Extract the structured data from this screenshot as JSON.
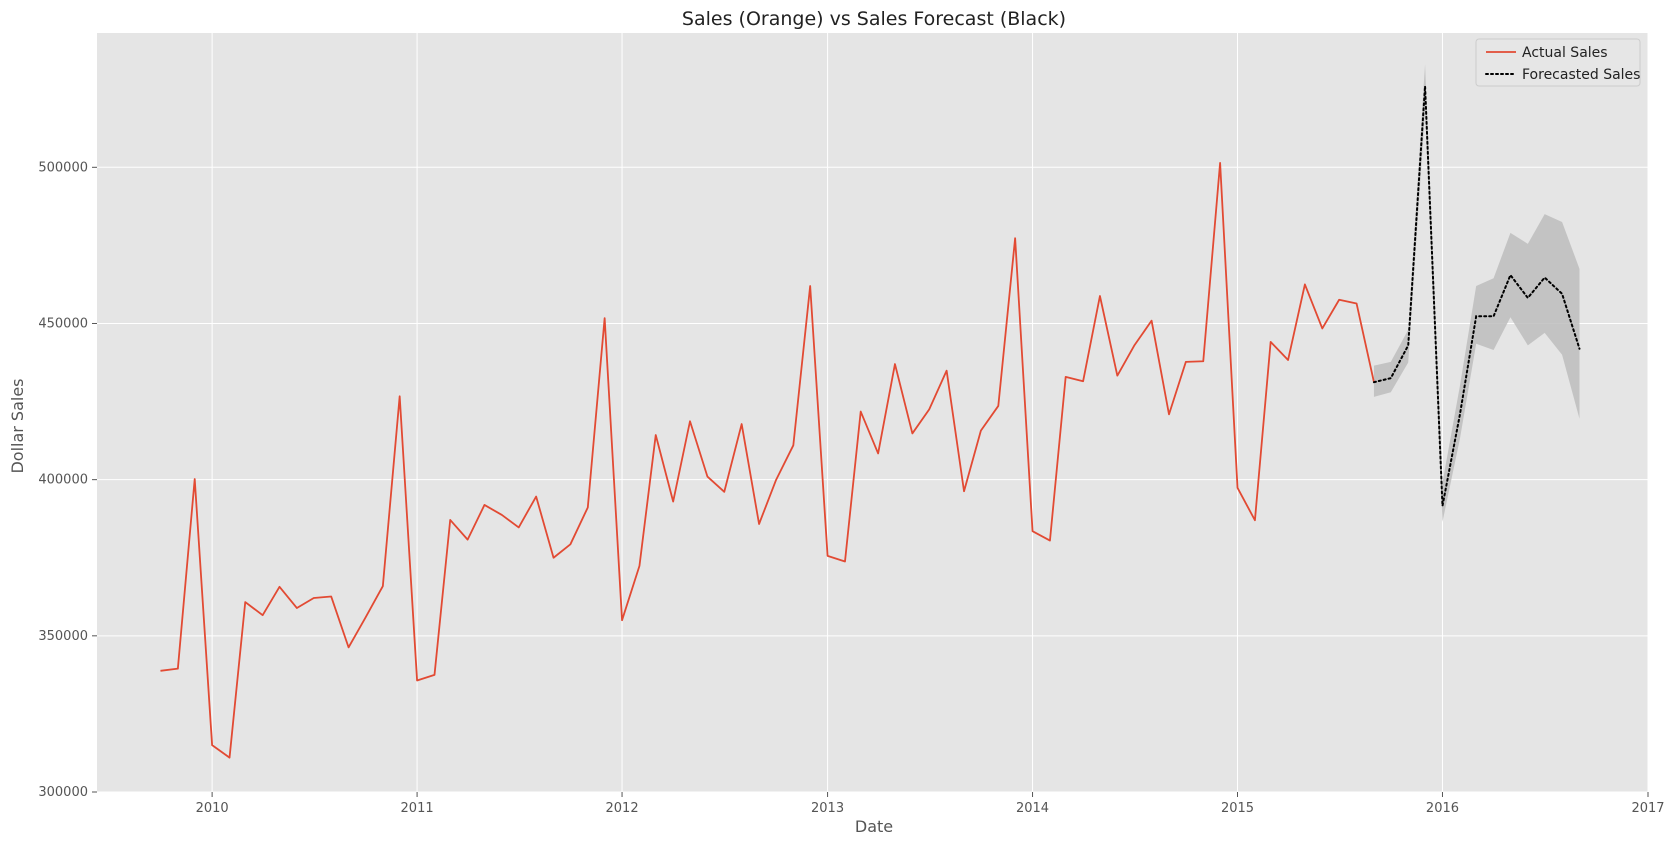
{
  "chart_data": {
    "type": "line",
    "title": "Sales (Orange) vs Sales Forecast (Black)",
    "xlabel": "Date",
    "ylabel": "Dollar Sales",
    "xlim": [
      "2009-06-10",
      "2017-01-01"
    ],
    "ylim": [
      300000,
      543000
    ],
    "x_ticks": [
      "2010",
      "2011",
      "2012",
      "2013",
      "2014",
      "2015",
      "2016",
      "2017"
    ],
    "y_ticks": [
      "300000",
      "350000",
      "400000",
      "450000",
      "500000"
    ],
    "grid": true,
    "legend_position": "top-right",
    "colors": {
      "plot_background": "#e5e5e5",
      "grid": "#ffffff",
      "actual": "#e24a33",
      "forecast": "#000000",
      "confidence_band": "#bdbdbd"
    },
    "series": [
      {
        "name": "Actual Sales",
        "style": "solid",
        "x": [
          "2009-10-01",
          "2009-11-01",
          "2009-12-01",
          "2010-01-01",
          "2010-02-01",
          "2010-03-01",
          "2010-04-01",
          "2010-05-01",
          "2010-06-01",
          "2010-07-01",
          "2010-08-01",
          "2010-09-01",
          "2010-10-01",
          "2010-11-01",
          "2010-12-01",
          "2011-01-01",
          "2011-02-01",
          "2011-03-01",
          "2011-04-01",
          "2011-05-01",
          "2011-06-01",
          "2011-07-01",
          "2011-08-01",
          "2011-09-01",
          "2011-10-01",
          "2011-11-01",
          "2011-12-01",
          "2012-01-01",
          "2012-02-01",
          "2012-03-01",
          "2012-04-01",
          "2012-05-01",
          "2012-06-01",
          "2012-07-01",
          "2012-08-01",
          "2012-09-01",
          "2012-10-01",
          "2012-11-01",
          "2012-12-01",
          "2013-01-01",
          "2013-02-01",
          "2013-03-01",
          "2013-04-01",
          "2013-05-01",
          "2013-06-01",
          "2013-07-01",
          "2013-08-01",
          "2013-09-01",
          "2013-10-01",
          "2013-11-01",
          "2013-12-01",
          "2014-01-01",
          "2014-02-01",
          "2014-03-01",
          "2014-04-01",
          "2014-05-01",
          "2014-06-01",
          "2014-07-01",
          "2014-08-01",
          "2014-09-01",
          "2014-10-01",
          "2014-11-01",
          "2014-12-01",
          "2015-01-01",
          "2015-02-01",
          "2015-03-01",
          "2015-04-01",
          "2015-05-01",
          "2015-06-01",
          "2015-07-01",
          "2015-08-01",
          "2015-09-01"
        ],
        "values": [
          338800,
          339500,
          400200,
          315000,
          311000,
          360800,
          356600,
          365700,
          358900,
          362100,
          362600,
          346300,
          355800,
          365900,
          426700,
          335700,
          337500,
          387100,
          380800,
          391900,
          388700,
          384700,
          394600,
          375000,
          379300,
          391100,
          451700,
          355000,
          372400,
          414300,
          393000,
          418700,
          401000,
          396100,
          417800,
          385800,
          399800,
          411000,
          462000,
          375600,
          373800,
          421800,
          408400,
          437000,
          414800,
          422500,
          434900,
          396300,
          415700,
          423600,
          477300,
          383500,
          380500,
          432900,
          431500,
          458800,
          433300,
          442900,
          450900,
          420900,
          437700,
          437900,
          501400,
          397400,
          387000,
          444100,
          438300,
          462500,
          448400,
          457600,
          456400,
          431200
        ]
      },
      {
        "name": "Forecasted Sales",
        "style": "dotted",
        "x": [
          "2015-09-01",
          "2015-10-01",
          "2015-11-01",
          "2015-12-01",
          "2016-01-01",
          "2016-02-01",
          "2016-03-01",
          "2016-04-01",
          "2016-05-01",
          "2016-06-01",
          "2016-07-01",
          "2016-08-01",
          "2016-09-01"
        ],
        "values": [
          431200,
          432500,
          443000,
          526000,
          391600,
          420800,
          452300,
          452300,
          465500,
          458200,
          464700,
          459500,
          441900
        ],
        "lower": [
          426500,
          428000,
          437500,
          518000,
          386500,
          413000,
          443500,
          441500,
          452000,
          443000,
          447000,
          440000,
          419500
        ],
        "upper": [
          436500,
          437700,
          448000,
          533000,
          399000,
          430000,
          462000,
          464500,
          479000,
          475500,
          485000,
          482500,
          467500
        ]
      }
    ]
  }
}
